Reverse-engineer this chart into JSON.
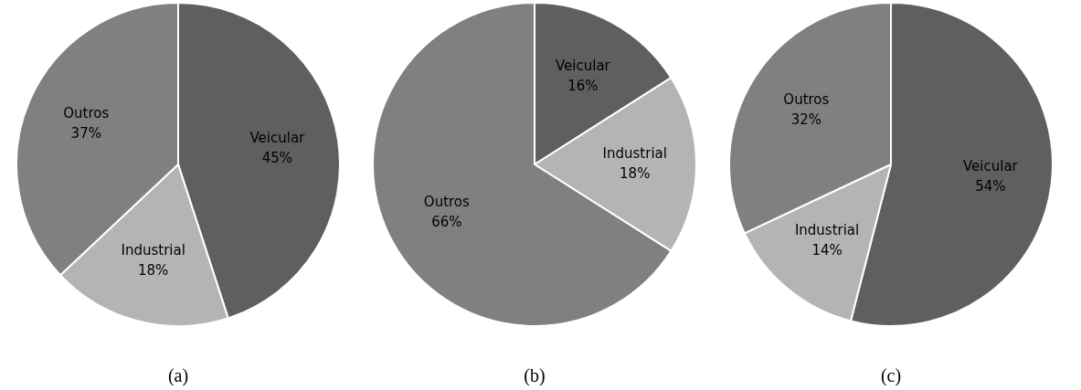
{
  "chart_data": [
    {
      "type": "pie",
      "categories": [
        "Veicular",
        "Industrial",
        "Outros"
      ],
      "values": [
        45,
        18,
        37
      ],
      "value_labels": [
        "45%",
        "18%",
        "37%"
      ],
      "colors": [
        "#5f5f5f",
        "#b4b4b4",
        "#808080"
      ],
      "annotations": [
        "(a)"
      ]
    },
    {
      "type": "pie",
      "categories": [
        "Veicular",
        "Industrial",
        "Outros"
      ],
      "values": [
        16,
        18,
        66
      ],
      "value_labels": [
        "16%",
        "18%",
        "66%"
      ],
      "colors": [
        "#5f5f5f",
        "#b4b4b4",
        "#808080"
      ],
      "annotations": [
        "(b)"
      ]
    },
    {
      "type": "pie",
      "categories": [
        "Veicular",
        "Industrial",
        "Outros"
      ],
      "values": [
        54,
        14,
        32
      ],
      "value_labels": [
        "54%",
        "14%",
        "32%"
      ],
      "colors": [
        "#5f5f5f",
        "#b4b4b4",
        "#808080"
      ],
      "annotations": [
        "(c)"
      ]
    }
  ]
}
